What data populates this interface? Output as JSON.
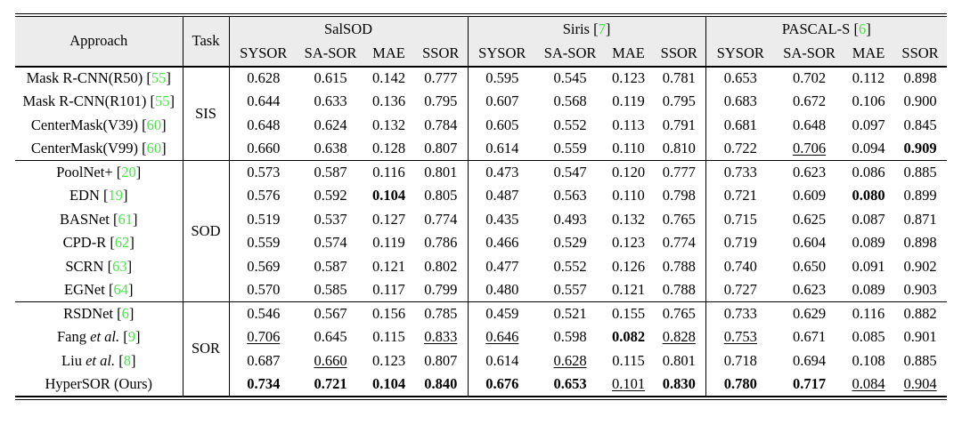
{
  "colors": {
    "citation_green": "#4ce44c",
    "header_bg": "#ececec",
    "rule_black": "#000000"
  },
  "table": {
    "header": {
      "approach": "Approach",
      "task": "Task",
      "groups": [
        {
          "label": "SalSOD",
          "cite": null
        },
        {
          "label": "Siris",
          "cite": "7"
        },
        {
          "label": "PASCAL-S",
          "cite": "6"
        }
      ],
      "metrics": [
        "SYSOR",
        "SA-SOR",
        "MAE",
        "SSOR"
      ]
    },
    "sections": [
      {
        "task": "SIS",
        "rows": [
          {
            "name": "Mask R-CNN(R50)",
            "etal": false,
            "cite": "55",
            "cells": [
              "0.628",
              "0.615",
              "0.142",
              "0.777",
              "0.595",
              "0.545",
              "0.123",
              "0.781",
              "0.653",
              "0.702",
              "0.112",
              "0.898"
            ]
          },
          {
            "name": "Mask R-CNN(R101)",
            "etal": false,
            "cite": "55",
            "cells": [
              "0.644",
              "0.633",
              "0.136",
              "0.795",
              "0.607",
              "0.568",
              "0.119",
              "0.795",
              "0.683",
              "0.672",
              "0.106",
              "0.900"
            ]
          },
          {
            "name": "CenterMask(V39)",
            "etal": false,
            "cite": "60",
            "cells": [
              "0.648",
              "0.624",
              "0.132",
              "0.784",
              "0.605",
              "0.552",
              "0.113",
              "0.791",
              "0.681",
              "0.648",
              "0.097",
              "0.845"
            ]
          },
          {
            "name": "CenterMask(V99)",
            "etal": false,
            "cite": "60",
            "cells": [
              "0.660",
              "0.638",
              "0.128",
              "0.807",
              "0.614",
              "0.559",
              "0.110",
              "0.810",
              "0.722",
              [
                "0.706",
                "u"
              ],
              "0.094",
              [
                "0.909",
                "b"
              ]
            ]
          }
        ]
      },
      {
        "task": "SOD",
        "rows": [
          {
            "name": "PoolNet+",
            "etal": false,
            "cite": "20",
            "cells": [
              "0.573",
              "0.587",
              "0.116",
              "0.801",
              "0.473",
              "0.547",
              "0.120",
              "0.777",
              "0.733",
              "0.623",
              "0.086",
              "0.885"
            ]
          },
          {
            "name": "EDN",
            "etal": false,
            "cite": "19",
            "cells": [
              "0.576",
              "0.592",
              [
                "0.104",
                "b"
              ],
              "0.805",
              "0.487",
              "0.563",
              "0.110",
              "0.798",
              "0.721",
              "0.609",
              [
                "0.080",
                "b"
              ],
              "0.899"
            ]
          },
          {
            "name": "BASNet",
            "etal": false,
            "cite": "61",
            "cells": [
              "0.519",
              "0.537",
              "0.127",
              "0.774",
              "0.435",
              "0.493",
              "0.132",
              "0.765",
              "0.715",
              "0.625",
              "0.087",
              "0.871"
            ]
          },
          {
            "name": "CPD-R",
            "etal": false,
            "cite": "62",
            "cells": [
              "0.559",
              "0.574",
              "0.119",
              "0.786",
              "0.466",
              "0.529",
              "0.123",
              "0.774",
              "0.719",
              "0.604",
              "0.089",
              "0.898"
            ]
          },
          {
            "name": "SCRN",
            "etal": false,
            "cite": "63",
            "cells": [
              "0.569",
              "0.587",
              "0.121",
              "0.802",
              "0.477",
              "0.552",
              "0.126",
              "0.788",
              "0.740",
              "0.650",
              "0.091",
              "0.902"
            ]
          },
          {
            "name": "EGNet",
            "etal": false,
            "cite": "64",
            "cells": [
              "0.570",
              "0.585",
              "0.117",
              "0.799",
              "0.480",
              "0.557",
              "0.121",
              "0.788",
              "0.727",
              "0.623",
              "0.089",
              "0.903"
            ]
          }
        ]
      },
      {
        "task": "SOR",
        "rows": [
          {
            "name": "RSDNet",
            "etal": false,
            "cite": "6",
            "cells": [
              "0.546",
              "0.567",
              "0.156",
              "0.785",
              "0.459",
              "0.521",
              "0.155",
              "0.765",
              "0.733",
              "0.629",
              "0.116",
              "0.882"
            ]
          },
          {
            "name": "Fang",
            "etal": true,
            "cite": "9",
            "cells": [
              [
                "0.706",
                "u"
              ],
              "0.645",
              "0.115",
              [
                "0.833",
                "u"
              ],
              [
                "0.646",
                "u"
              ],
              "0.598",
              [
                "0.082",
                "b"
              ],
              [
                "0.828",
                "u"
              ],
              [
                "0.753",
                "u"
              ],
              "0.671",
              "0.085",
              "0.901"
            ]
          },
          {
            "name": "Liu",
            "etal": true,
            "cite": "8",
            "cells": [
              "0.687",
              [
                "0.660",
                "u"
              ],
              "0.123",
              "0.807",
              "0.614",
              [
                "0.628",
                "u"
              ],
              "0.115",
              "0.801",
              "0.718",
              "0.694",
              "0.108",
              "0.885"
            ]
          },
          {
            "name": "HyperSOR (Ours)",
            "etal": false,
            "cite": null,
            "cells": [
              [
                "0.734",
                "b"
              ],
              [
                "0.721",
                "b"
              ],
              [
                "0.104",
                "b"
              ],
              [
                "0.840",
                "b"
              ],
              [
                "0.676",
                "b"
              ],
              [
                "0.653",
                "b"
              ],
              [
                "0.101",
                "u"
              ],
              [
                "0.830",
                "b"
              ],
              [
                "0.780",
                "b"
              ],
              [
                "0.717",
                "b"
              ],
              [
                "0.084",
                "u"
              ],
              [
                "0.904",
                "u"
              ]
            ]
          }
        ]
      }
    ]
  }
}
